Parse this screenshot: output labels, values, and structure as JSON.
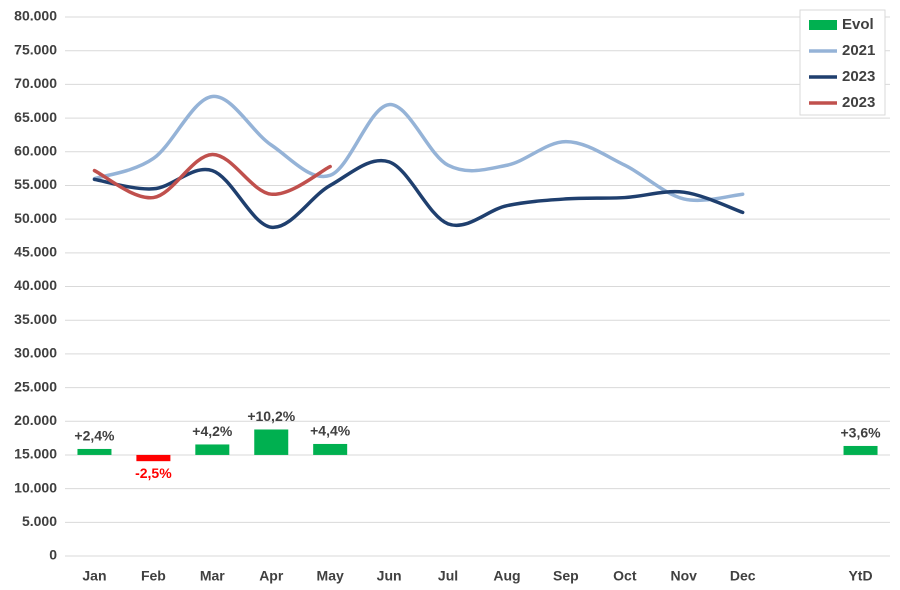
{
  "chart_data": {
    "type": "line",
    "categories": [
      "Jan",
      "Feb",
      "Mar",
      "Apr",
      "May",
      "Jun",
      "Jul",
      "Aug",
      "Sep",
      "Oct",
      "Nov",
      "Dec",
      null,
      "YtD"
    ],
    "ylim": [
      0,
      80000
    ],
    "yticks": [
      0,
      {
        "value": 5000,
        "label": "5.000"
      },
      {
        "value": 10000,
        "label": "10.000"
      },
      {
        "value": 15000,
        "label": "15.000"
      },
      {
        "value": 20000,
        "label": "20.000"
      },
      {
        "value": 25000,
        "label": "25.000"
      },
      {
        "value": 30000,
        "label": "30.000"
      },
      {
        "value": 35000,
        "label": "35.000"
      },
      {
        "value": 40000,
        "label": "40.000"
      },
      {
        "value": 45000,
        "label": "45.000"
      },
      {
        "value": 50000,
        "label": "50.000"
      },
      {
        "value": 55000,
        "label": "55.000"
      },
      {
        "value": 60000,
        "label": "60.000"
      },
      {
        "value": 65000,
        "label": "65.000"
      },
      {
        "value": 70000,
        "label": "70.000"
      },
      {
        "value": 75000,
        "label": "75.000"
      },
      {
        "value": 80000,
        "label": "80.000"
      }
    ],
    "y2lim": [
      -40.5,
      175.5
    ],
    "grid": true,
    "legend": "top-right",
    "series": [
      {
        "name": "Evol",
        "type": "bar",
        "axis": "y2",
        "color": "#00b050",
        "negative_color": "#ff0000",
        "values": [
          2.4,
          -2.5,
          4.2,
          10.2,
          4.4,
          null,
          null,
          null,
          null,
          null,
          null,
          null,
          null,
          3.6
        ],
        "value_labels": [
          "+2,4%",
          "-2,5%",
          "+4,2%",
          "+10,2%",
          "+4,4%",
          null,
          null,
          null,
          null,
          null,
          null,
          null,
          null,
          "+3,6%"
        ]
      },
      {
        "name": "2021",
        "type": "line",
        "color": "#95b3d7",
        "values": [
          56000,
          59000,
          68200,
          61000,
          56500,
          67000,
          58000,
          58000,
          61500,
          58000,
          53000,
          53700,
          null,
          null
        ]
      },
      {
        "name": "2023",
        "type": "line",
        "color": "#1f3f6e",
        "values": [
          55900,
          54500,
          57200,
          48800,
          55000,
          58500,
          49300,
          52000,
          53000,
          53200,
          54000,
          51000,
          null,
          null
        ]
      },
      {
        "name": "2023",
        "type": "line",
        "color": "#c0504d",
        "values": [
          57200,
          53200,
          59600,
          53700,
          57800,
          null,
          null,
          null,
          null,
          null,
          null,
          null,
          null,
          null
        ]
      }
    ]
  }
}
